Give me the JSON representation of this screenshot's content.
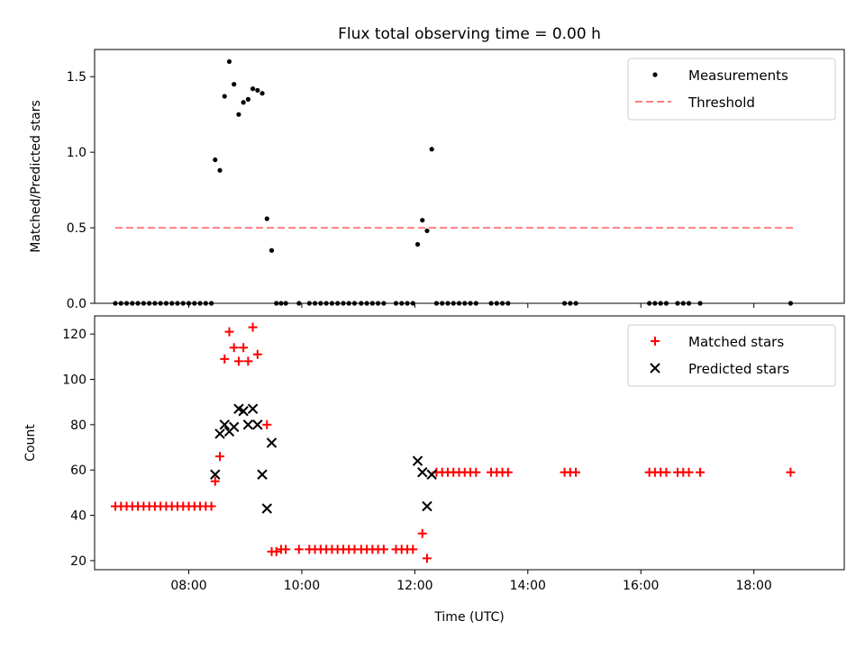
{
  "chart_data": [
    {
      "type": "scatter",
      "title": "Flux total observing time = 0.00 h",
      "xlabel": "",
      "ylabel": "Matched/Predicted stars",
      "x_unit": "time UTC (HH:MM)",
      "xlim": [
        "06:20",
        "19:36"
      ],
      "ylim": [
        0,
        1.68
      ],
      "yticks": [
        "0.0",
        "0.5",
        "1.0",
        "1.5"
      ],
      "legend_position": "top-right",
      "series": [
        {
          "name": "Measurements",
          "marker": "dot",
          "color": "#000000",
          "points": [
            [
              "06:42",
              0
            ],
            [
              "06:48",
              0
            ],
            [
              "06:54",
              0
            ],
            [
              "07:00",
              0
            ],
            [
              "07:06",
              0
            ],
            [
              "07:12",
              0
            ],
            [
              "07:18",
              0
            ],
            [
              "07:24",
              0
            ],
            [
              "07:30",
              0
            ],
            [
              "07:36",
              0
            ],
            [
              "07:42",
              0
            ],
            [
              "07:48",
              0
            ],
            [
              "07:54",
              0
            ],
            [
              "08:00",
              0
            ],
            [
              "08:06",
              0
            ],
            [
              "08:12",
              0
            ],
            [
              "08:18",
              0
            ],
            [
              "08:24",
              0
            ],
            [
              "08:28",
              0.95
            ],
            [
              "08:33",
              0.88
            ],
            [
              "08:38",
              1.37
            ],
            [
              "08:43",
              1.6
            ],
            [
              "08:48",
              1.45
            ],
            [
              "08:53",
              1.25
            ],
            [
              "08:58",
              1.33
            ],
            [
              "09:03",
              1.35
            ],
            [
              "09:08",
              1.42
            ],
            [
              "09:13",
              1.41
            ],
            [
              "09:18",
              1.39
            ],
            [
              "09:23",
              0.56
            ],
            [
              "09:28",
              0.35
            ],
            [
              "09:33",
              0
            ],
            [
              "09:38",
              0
            ],
            [
              "09:43",
              0
            ],
            [
              "09:57",
              0
            ],
            [
              "10:08",
              0
            ],
            [
              "10:14",
              0
            ],
            [
              "10:20",
              0
            ],
            [
              "10:26",
              0
            ],
            [
              "10:32",
              0
            ],
            [
              "10:38",
              0
            ],
            [
              "10:44",
              0
            ],
            [
              "10:50",
              0
            ],
            [
              "10:56",
              0
            ],
            [
              "11:03",
              0
            ],
            [
              "11:09",
              0
            ],
            [
              "11:15",
              0
            ],
            [
              "11:21",
              0
            ],
            [
              "11:27",
              0
            ],
            [
              "11:40",
              0
            ],
            [
              "11:46",
              0
            ],
            [
              "11:52",
              0
            ],
            [
              "11:58",
              0
            ],
            [
              "12:03",
              0.39
            ],
            [
              "12:08",
              0.55
            ],
            [
              "12:13",
              0.48
            ],
            [
              "12:18",
              1.02
            ],
            [
              "12:23",
              0
            ],
            [
              "12:29",
              0
            ],
            [
              "12:35",
              0
            ],
            [
              "12:41",
              0
            ],
            [
              "12:47",
              0
            ],
            [
              "12:53",
              0
            ],
            [
              "12:59",
              0
            ],
            [
              "13:05",
              0
            ],
            [
              "13:21",
              0
            ],
            [
              "13:27",
              0
            ],
            [
              "13:33",
              0
            ],
            [
              "13:39",
              0
            ],
            [
              "14:39",
              0
            ],
            [
              "14:45",
              0
            ],
            [
              "14:51",
              0
            ],
            [
              "16:09",
              0
            ],
            [
              "16:15",
              0
            ],
            [
              "16:21",
              0
            ],
            [
              "16:27",
              0
            ],
            [
              "16:39",
              0
            ],
            [
              "16:45",
              0
            ],
            [
              "16:51",
              0
            ],
            [
              "17:03",
              0
            ],
            [
              "18:39",
              0
            ]
          ]
        },
        {
          "name": "Threshold",
          "style": "dashed",
          "color": "#ff8080",
          "points": [
            [
              "06:42",
              0.5
            ],
            [
              "18:45",
              0.5
            ]
          ]
        }
      ]
    },
    {
      "type": "scatter",
      "title": "",
      "xlabel": "Time (UTC)",
      "ylabel": "Count",
      "xlim": [
        "06:20",
        "19:36"
      ],
      "ylim": [
        16,
        128
      ],
      "yticks": [
        "20",
        "40",
        "60",
        "80",
        "100",
        "120"
      ],
      "xticks": [
        "08:00",
        "10:00",
        "12:00",
        "14:00",
        "16:00",
        "18:00"
      ],
      "legend_position": "top-right",
      "series": [
        {
          "name": "Matched stars",
          "marker": "plus",
          "color": "#ff0000",
          "points": [
            [
              "06:42",
              44
            ],
            [
              "06:48",
              44
            ],
            [
              "06:54",
              44
            ],
            [
              "07:00",
              44
            ],
            [
              "07:06",
              44
            ],
            [
              "07:12",
              44
            ],
            [
              "07:18",
              44
            ],
            [
              "07:24",
              44
            ],
            [
              "07:30",
              44
            ],
            [
              "07:36",
              44
            ],
            [
              "07:42",
              44
            ],
            [
              "07:48",
              44
            ],
            [
              "07:54",
              44
            ],
            [
              "08:00",
              44
            ],
            [
              "08:06",
              44
            ],
            [
              "08:12",
              44
            ],
            [
              "08:18",
              44
            ],
            [
              "08:24",
              44
            ],
            [
              "08:28",
              55
            ],
            [
              "08:33",
              66
            ],
            [
              "08:38",
              109
            ],
            [
              "08:43",
              121
            ],
            [
              "08:48",
              114
            ],
            [
              "08:53",
              108
            ],
            [
              "08:58",
              114
            ],
            [
              "09:03",
              108
            ],
            [
              "09:08",
              123
            ],
            [
              "09:13",
              111
            ],
            [
              "09:23",
              80
            ],
            [
              "09:28",
              24
            ],
            [
              "09:33",
              24
            ],
            [
              "09:38",
              25
            ],
            [
              "09:43",
              25
            ],
            [
              "09:57",
              25
            ],
            [
              "10:08",
              25
            ],
            [
              "10:14",
              25
            ],
            [
              "10:20",
              25
            ],
            [
              "10:26",
              25
            ],
            [
              "10:32",
              25
            ],
            [
              "10:38",
              25
            ],
            [
              "10:44",
              25
            ],
            [
              "10:50",
              25
            ],
            [
              "10:56",
              25
            ],
            [
              "11:03",
              25
            ],
            [
              "11:09",
              25
            ],
            [
              "11:15",
              25
            ],
            [
              "11:21",
              25
            ],
            [
              "11:27",
              25
            ],
            [
              "11:40",
              25
            ],
            [
              "11:46",
              25
            ],
            [
              "11:52",
              25
            ],
            [
              "11:58",
              25
            ],
            [
              "12:08",
              32
            ],
            [
              "12:13",
              21
            ],
            [
              "12:23",
              59
            ],
            [
              "12:29",
              59
            ],
            [
              "12:35",
              59
            ],
            [
              "12:41",
              59
            ],
            [
              "12:47",
              59
            ],
            [
              "12:53",
              59
            ],
            [
              "12:59",
              59
            ],
            [
              "13:05",
              59
            ],
            [
              "13:21",
              59
            ],
            [
              "13:27",
              59
            ],
            [
              "13:33",
              59
            ],
            [
              "13:39",
              59
            ],
            [
              "14:39",
              59
            ],
            [
              "14:45",
              59
            ],
            [
              "14:51",
              59
            ],
            [
              "16:09",
              59
            ],
            [
              "16:15",
              59
            ],
            [
              "16:21",
              59
            ],
            [
              "16:27",
              59
            ],
            [
              "16:39",
              59
            ],
            [
              "16:45",
              59
            ],
            [
              "16:51",
              59
            ],
            [
              "17:03",
              59
            ],
            [
              "18:39",
              59
            ]
          ]
        },
        {
          "name": "Predicted stars",
          "marker": "x",
          "color": "#000000",
          "points": [
            [
              "08:28",
              58
            ],
            [
              "08:33",
              76
            ],
            [
              "08:38",
              80
            ],
            [
              "08:43",
              77
            ],
            [
              "08:48",
              79
            ],
            [
              "08:53",
              87
            ],
            [
              "08:58",
              86
            ],
            [
              "09:03",
              80
            ],
            [
              "09:08",
              87
            ],
            [
              "09:13",
              80
            ],
            [
              "09:18",
              58
            ],
            [
              "09:23",
              43
            ],
            [
              "09:28",
              72
            ],
            [
              "12:03",
              64
            ],
            [
              "12:08",
              59
            ],
            [
              "12:13",
              44
            ],
            [
              "12:18",
              58
            ]
          ]
        }
      ]
    }
  ]
}
